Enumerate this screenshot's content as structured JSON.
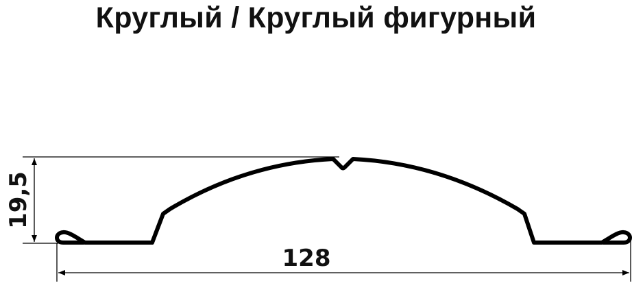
{
  "title": "Круглый / Круглый фигурный",
  "dimensions": {
    "height": "19,5",
    "width": "128"
  },
  "colors": {
    "stroke": "#000000",
    "text": "#111111"
  }
}
